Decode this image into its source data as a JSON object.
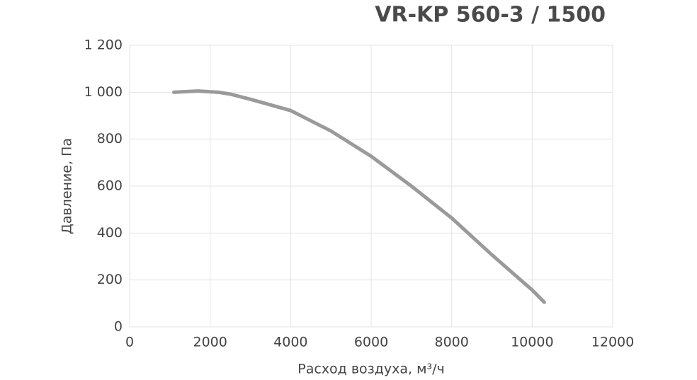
{
  "chart_data": {
    "type": "line",
    "title": "VR-KP 560-3 / 1500",
    "x_label": "Расход воздуха, м³/ч",
    "y_label": "Давление, Па",
    "x": [
      1100,
      1700,
      2200,
      2500,
      3000,
      4000,
      5000,
      6000,
      7000,
      8000,
      9000,
      10000,
      10300
    ],
    "series": [
      {
        "name": "VR-KP 560-3 / 1500",
        "color": "#9a9a9a",
        "values": [
          1000,
          1005,
          1000,
          992,
          970,
          922,
          835,
          727,
          600,
          464,
          307,
          157,
          105
        ]
      }
    ],
    "xlim": [
      0,
      12000
    ],
    "xticks": [
      0,
      2000,
      4000,
      6000,
      8000,
      10000,
      12000
    ],
    "ylim": [
      0,
      1200
    ],
    "yticks": [
      0,
      200,
      400,
      600,
      800,
      {
        "value": 1000,
        "label": "1 000"
      },
      {
        "value": 1200,
        "label": "1 200"
      }
    ],
    "grid": true
  }
}
